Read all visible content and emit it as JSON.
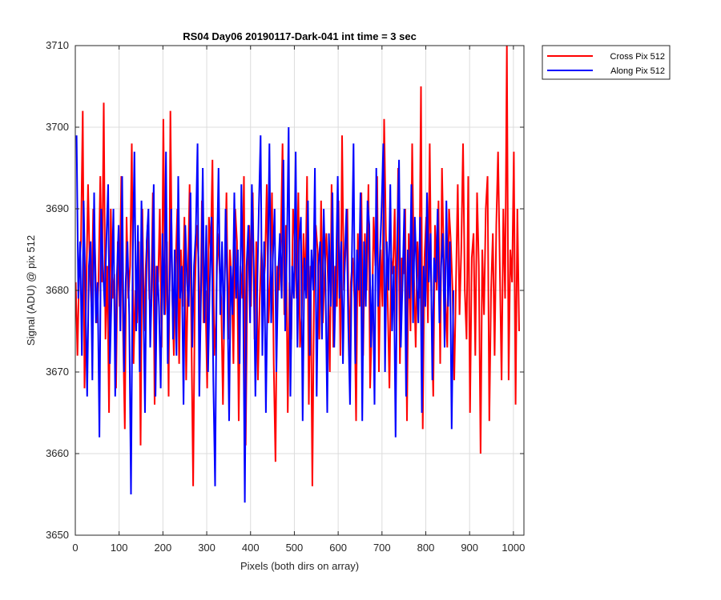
{
  "chart_data": {
    "type": "line",
    "title": "RS04 Day06 20190117-Dark-041 int time = 3 sec",
    "xlabel": "Pixels (both dirs on array)",
    "ylabel": "Signal (ADU) @ pix 512",
    "xlim": [
      0,
      1024
    ],
    "ylim": [
      3650,
      3710
    ],
    "xticks": [
      0,
      100,
      200,
      300,
      400,
      500,
      600,
      700,
      800,
      900,
      1000
    ],
    "yticks": [
      3650,
      3660,
      3670,
      3680,
      3690,
      3700,
      3710
    ],
    "grid": true,
    "legend_position": "outside-top-right",
    "series": [
      {
        "name": "Cross Pix 512",
        "color": "#ff0000",
        "x_start": 1,
        "x_step": 4,
        "values": [
          3681,
          3672,
          3683,
          3686,
          3702,
          3668,
          3680,
          3693,
          3683,
          3678,
          3690,
          3685,
          3676,
          3681,
          3694,
          3681,
          3703,
          3674,
          3683,
          3665,
          3690,
          3679,
          3682,
          3668,
          3686,
          3678,
          3694,
          3675,
          3663,
          3689,
          3679,
          3683,
          3698,
          3671,
          3680,
          3676,
          3686,
          3661,
          3690,
          3675,
          3683,
          3688,
          3679,
          3678,
          3692,
          3666,
          3683,
          3681,
          3690,
          3673,
          3701,
          3677,
          3686,
          3667,
          3702,
          3680,
          3672,
          3683,
          3690,
          3671,
          3685,
          3678,
          3689,
          3669,
          3681,
          3693,
          3675,
          3656,
          3680,
          3688,
          3684,
          3674,
          3691,
          3676,
          3680,
          3668,
          3689,
          3685,
          3696,
          3672,
          3676,
          3687,
          3683,
          3679,
          3666,
          3681,
          3692,
          3674,
          3685,
          3681,
          3671,
          3690,
          3686,
          3664,
          3683,
          3679,
          3694,
          3661,
          3683,
          3688,
          3678,
          3692,
          3674,
          3686,
          3669,
          3679,
          3685,
          3680,
          3683,
          3693,
          3676,
          3682,
          3692,
          3671,
          3659,
          3683,
          3680,
          3686,
          3698,
          3677,
          3688,
          3665,
          3681,
          3674,
          3690,
          3686,
          3679,
          3692,
          3673,
          3677,
          3687,
          3680,
          3694,
          3666,
          3683,
          3656,
          3680,
          3688,
          3685,
          3674,
          3691,
          3676,
          3682,
          3687,
          3681,
          3670,
          3693,
          3673,
          3683,
          3678,
          3691,
          3672,
          3699,
          3680,
          3685,
          3690,
          3672,
          3681,
          3684,
          3679,
          3664,
          3687,
          3678,
          3692,
          3672,
          3687,
          3680,
          3693,
          3668,
          3676,
          3689,
          3683,
          3694,
          3670,
          3685,
          3678,
          3701,
          3687,
          3679,
          3668,
          3684,
          3682,
          3690,
          3675,
          3695,
          3671,
          3684,
          3682,
          3690,
          3664,
          3687,
          3675,
          3698,
          3682,
          3673,
          3686,
          3679,
          3705,
          3663,
          3684,
          3689,
          3676,
          3698,
          3678,
          3667,
          3688,
          3680,
          3691,
          3671,
          3695,
          3684,
          3679,
          3673,
          3690,
          3686,
          3680,
          3669,
          3681,
          3693,
          3677,
          3685,
          3698,
          3680,
          3674,
          3694,
          3665,
          3684,
          3687,
          3672,
          3692,
          3683,
          3660,
          3685,
          3677,
          3690,
          3694,
          3664,
          3680,
          3687,
          3672,
          3688,
          3697,
          3683,
          3669,
          3690,
          3679,
          3710,
          3669,
          3685,
          3681,
          3697,
          3666,
          3690,
          3675
        ]
      },
      {
        "name": "Along Pix 512",
        "color": "#0000ff",
        "x_start": 3,
        "x_step": 4,
        "values": [
          3699,
          3679,
          3686,
          3672,
          3691,
          3680,
          3667,
          3683,
          3686,
          3669,
          3692,
          3676,
          3681,
          3662,
          3690,
          3683,
          3678,
          3686,
          3693,
          3671,
          3680,
          3690,
          3667,
          3682,
          3688,
          3675,
          3694,
          3670,
          3681,
          3686,
          3677,
          3655,
          3683,
          3697,
          3675,
          3688,
          3670,
          3691,
          3680,
          3665,
          3686,
          3690,
          3673,
          3681,
          3693,
          3667,
          3683,
          3678,
          3668,
          3687,
          3677,
          3697,
          3671,
          3680,
          3690,
          3674,
          3685,
          3672,
          3694,
          3679,
          3683,
          3666,
          3688,
          3681,
          3678,
          3692,
          3673,
          3683,
          3687,
          3698,
          3667,
          3680,
          3695,
          3676,
          3688,
          3670,
          3681,
          3689,
          3669,
          3656,
          3683,
          3695,
          3677,
          3686,
          3674,
          3690,
          3680,
          3664,
          3683,
          3677,
          3692,
          3679,
          3685,
          3671,
          3693,
          3680,
          3654,
          3683,
          3688,
          3676,
          3693,
          3684,
          3667,
          3680,
          3690,
          3699,
          3672,
          3686,
          3665,
          3681,
          3698,
          3676,
          3684,
          3690,
          3670,
          3682,
          3687,
          3679,
          3696,
          3675,
          3685,
          3700,
          3667,
          3683,
          3679,
          3697,
          3673,
          3686,
          3689,
          3664,
          3684,
          3679,
          3691,
          3672,
          3685,
          3680,
          3695,
          3667,
          3683,
          3686,
          3674,
          3690,
          3681,
          3665,
          3687,
          3678,
          3692,
          3673,
          3682,
          3694,
          3679,
          3686,
          3671,
          3684,
          3690,
          3676,
          3666,
          3683,
          3698,
          3671,
          3685,
          3680,
          3692,
          3664,
          3686,
          3678,
          3691,
          3688,
          3673,
          3682,
          3666,
          3695,
          3678,
          3684,
          3690,
          3698,
          3670,
          3686,
          3680,
          3693,
          3675,
          3683,
          3662,
          3687,
          3696,
          3673,
          3681,
          3690,
          3667,
          3685,
          3679,
          3693,
          3676,
          3689,
          3682,
          3676,
          3689,
          3665,
          3683,
          3678,
          3692,
          3681,
          3687,
          3669,
          3684,
          3681,
          3690,
          3676,
          3683,
          3687,
          3673,
          3691,
          3678,
          3686,
          3663,
          3680
        ]
      }
    ]
  }
}
